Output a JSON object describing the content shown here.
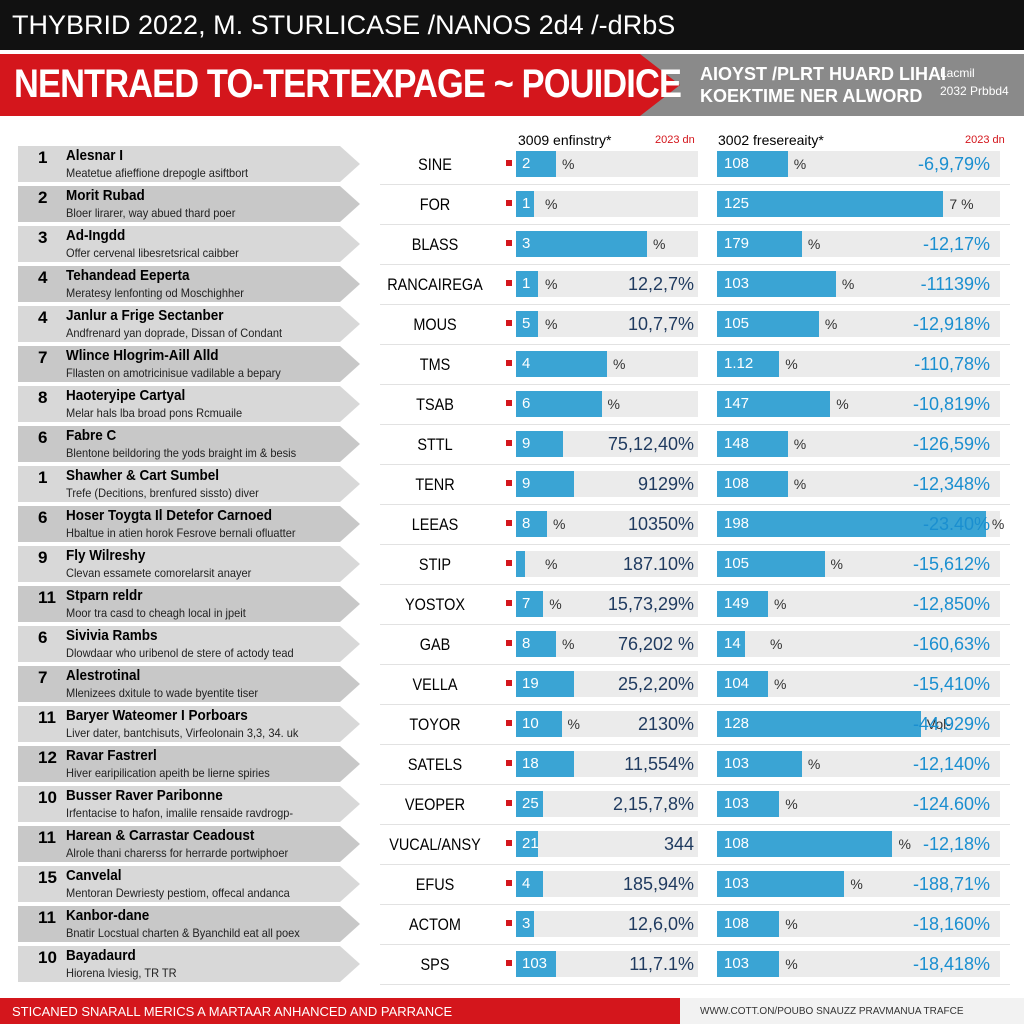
{
  "header": {
    "top": "THYBRID 2022, M. STURLICASE /NANOS 2d4 /-dRbS",
    "banner": "NENTRAED TO-TERTEXPAGE ~ POUIDICE",
    "side1": "AIOYST /PLRT HUARD LIHAI",
    "side2": "KOEKTIME NER ALWORD",
    "side3": "Lacmil",
    "side4": "2032 Prbbd4"
  },
  "columns": {
    "left": "3009 enfinstry*",
    "left_year": "2023 dn",
    "right": "3002 fresereaity*",
    "right_year": "2023 dn"
  },
  "rows": [
    {
      "rank": "1",
      "name": "Alesnar I",
      "desc": "Meatetue afieffione drepogle asiftbort",
      "code": "SINE",
      "left": {
        "label": "2",
        "unit": "%",
        "bar": 22
      },
      "right": {
        "label": "108",
        "unit": "%",
        "text": "-6,9,79%",
        "bar": 25
      }
    },
    {
      "rank": "2",
      "name": "Morit Rubad",
      "desc": "Bloer lirarer, way abued thard poer",
      "code": "FOR",
      "left": {
        "label": "1",
        "unit": "%",
        "bar": 10
      },
      "right": {
        "label": "125",
        "unit": "7 %",
        "bar": 80
      }
    },
    {
      "rank": "3",
      "name": "Ad-Ingdd",
      "desc": "Offer cervenal libesretsrical caibber",
      "code": "BLASS",
      "left": {
        "label": "3",
        "unit": "%",
        "bar": 72
      },
      "right": {
        "label": "179",
        "unit": "%",
        "text": "-12,17%",
        "bar": 30
      }
    },
    {
      "rank": "4",
      "name": "Tehandead Eeperta",
      "desc": "Meratesy lenfonting od Moschighher",
      "code": "RANCAIREGA",
      "left": {
        "label": "1",
        "unit": "%",
        "text": "12,2,7%",
        "bar": 12
      },
      "right": {
        "label": "103",
        "unit": "%",
        "text": "-11139%",
        "bar": 42
      }
    },
    {
      "rank": "4",
      "name": "Janlur a Frige Sectanber",
      "desc": "Andfrenard yan doprade, Dissan of Condant",
      "code": "MOUS",
      "left": {
        "label": "5",
        "unit": "%",
        "text": "10,7,7%",
        "bar": 12
      },
      "right": {
        "label": "105",
        "unit": "%",
        "text": "-12,918%",
        "bar": 36
      }
    },
    {
      "rank": "7",
      "name": "Wlince Hlogrim-Aill Alld",
      "desc": "Fllasten on amotricinisue vadilable a bepary",
      "code": "TMS",
      "left": {
        "label": "4",
        "unit": "%",
        "bar": 50
      },
      "right": {
        "label": "1.12",
        "unit": "%",
        "text": "-110,78%",
        "bar": 22
      }
    },
    {
      "rank": "8",
      "name": "Haoteryipe Cartyal",
      "desc": "Melar hals lba broad pons Rcmuaile",
      "code": "TSAB",
      "left": {
        "label": "6",
        "unit": "%",
        "bar": 47
      },
      "right": {
        "label": "147",
        "unit": "%",
        "text": "-10,819%",
        "bar": 40
      }
    },
    {
      "rank": "6",
      "name": "Fabre C",
      "desc": "Blentone beildoring the yods braight im & besis",
      "code": "STTL",
      "left": {
        "label": "9",
        "text": "75,12,40%",
        "bar": 26
      },
      "right": {
        "label": "148",
        "unit": "%",
        "text": "-126,59%",
        "bar": 25
      }
    },
    {
      "rank": "1",
      "name": "Shawher & Cart Sumbel",
      "desc": "Trefe (Decitions, brenfured sissto) diver",
      "code": "TENR",
      "left": {
        "label": "9",
        "text": "9129%",
        "bar": 32
      },
      "right": {
        "label": "108",
        "unit": "%",
        "text": "-12,348%",
        "bar": 25
      }
    },
    {
      "rank": "6",
      "name": "Hoser Toygta Il Detefor Carnoed",
      "desc": "Hbaltue in atien horok Fesrove bernali ofluatter",
      "code": "LEEAS",
      "left": {
        "label": "8",
        "unit": "%",
        "text": "10350%",
        "bar": 17
      },
      "right": {
        "label": "198",
        "unit": "%",
        "text": "-23.40%",
        "bar": 95
      }
    },
    {
      "rank": "9",
      "name": "Fly Wilreshy",
      "desc": "Clevan essamete comorelarsit anayer",
      "code": "STIP",
      "left": {
        "unit": "%",
        "text": "187.10%",
        "bar": 5
      },
      "right": {
        "label": "105",
        "unit": "%",
        "text": "-15,612%",
        "bar": 38
      }
    },
    {
      "rank": "11",
      "name": "Stparn reldr",
      "desc": "Moor tra casd to cheagh local in jpeit",
      "code": "YOSTOX",
      "left": {
        "label": "7",
        "unit": "%",
        "text": "15,73,29%",
        "bar": 15
      },
      "right": {
        "label": "149",
        "unit": "%",
        "text": "-12,850%",
        "bar": 18
      }
    },
    {
      "rank": "6",
      "name": "Sivivia Rambs",
      "desc": "Dlowdaar who uribenol de stere of actody tead",
      "code": "GAB",
      "left": {
        "label": "8",
        "unit": "%",
        "text": "76,202 %",
        "bar": 22
      },
      "right": {
        "label": "14",
        "unit": "%",
        "text": "-160,63%",
        "bar": 10
      }
    },
    {
      "rank": "7",
      "name": "Alestrotinal",
      "desc": "Mlenizees dxitule to wade byentite tiser",
      "code": "VELLA",
      "left": {
        "label": "19",
        "text": "25,2,20%",
        "bar": 32
      },
      "right": {
        "label": "104",
        "unit": "%",
        "text": "-15,410%",
        "bar": 18
      }
    },
    {
      "rank": "11",
      "name": "Baryer Wateomer I Porboars",
      "desc": "Liver dater, bantchisuts, Virfeolonain 3,3, 34. uk",
      "code": "TOYOR",
      "left": {
        "label": "10",
        "unit": "%",
        "text": "2130%",
        "bar": 25
      },
      "right": {
        "label": "128",
        "unit": "Vol-",
        "text": "-44,929%",
        "bar": 72
      }
    },
    {
      "rank": "12",
      "name": "Ravar Fastrerl",
      "desc": "Hiver earipilication apeith be lierne spiries",
      "code": "SATELS",
      "left": {
        "label": "18",
        "text": "11,554%",
        "bar": 32
      },
      "right": {
        "label": "103",
        "unit": "%",
        "text": "-12,140%",
        "bar": 30
      }
    },
    {
      "rank": "10",
      "name": "Busser Raver Paribonne",
      "desc": "Irfentacise to hafon, imalile rensaide ravdrogp-",
      "code": "VEOPER",
      "left": {
        "label": "25",
        "text": "2,15,7,8%",
        "bar": 15
      },
      "right": {
        "label": "103",
        "unit": "%",
        "text": "-124.60%",
        "bar": 22
      }
    },
    {
      "rank": "11",
      "name": "Harean & Carrastar Ceadoust",
      "desc": "Alrole thani charerss for herrarde portwiphoer",
      "code": "VUCAL/ANSY",
      "left": {
        "label": "21",
        "text": "344",
        "bar": 12
      },
      "right": {
        "label": "108",
        "unit": "%",
        "text": "-12,18%",
        "bar": 62
      }
    },
    {
      "rank": "15",
      "name": "Canvelal",
      "desc": "Mentoran Dewriesty pestiom, offecal andanca",
      "code": "EFUS",
      "left": {
        "label": "4",
        "text": "185,94%",
        "bar": 15
      },
      "right": {
        "label": "103",
        "unit": "%",
        "text": "-188,71%",
        "bar": 45
      }
    },
    {
      "rank": "11",
      "name": "Kanbor-dane",
      "desc": "Bnatir Locstual charten & Byanchild eat all poex",
      "code": "ACTOM",
      "left": {
        "label": "3",
        "text": "12,6,0%",
        "bar": 10
      },
      "right": {
        "label": "108",
        "unit": "%",
        "text": "-18,160%",
        "bar": 22
      }
    },
    {
      "rank": "10",
      "name": "Bayadaurd",
      "desc": "Hiorena lviesig, TR TR",
      "code": "SPS",
      "left": {
        "label": "103",
        "text": "11,7.1%",
        "bar": 22
      },
      "right": {
        "label": "103",
        "unit": "%",
        "text": "-18,418%",
        "bar": 22
      }
    }
  ],
  "footer": {
    "left": "STICANED SNARALL MERICS A MARTAAR ANHANCED AND PARRANCE",
    "right": "WWW.COTT.ON/POUBO SNAUZZ PRAVMANUA TRAFCE"
  }
}
